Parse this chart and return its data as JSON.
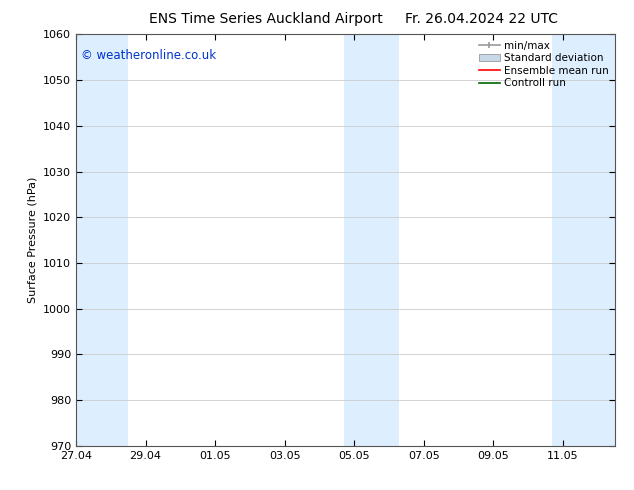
{
  "title_left": "ENS Time Series Auckland Airport",
  "title_right": "Fr. 26.04.2024 22 UTC",
  "ylabel": "Surface Pressure (hPa)",
  "ylim": [
    970,
    1060
  ],
  "yticks": [
    970,
    980,
    990,
    1000,
    1010,
    1020,
    1030,
    1040,
    1050,
    1060
  ],
  "xtick_labels": [
    "27.04",
    "29.04",
    "01.05",
    "03.05",
    "05.05",
    "07.05",
    "09.05",
    "11.05"
  ],
  "xtick_positions": [
    0,
    2,
    4,
    6,
    8,
    10,
    12,
    14
  ],
  "xlim": [
    0,
    15.5
  ],
  "shaded_bands": [
    {
      "x_start": -0.1,
      "x_end": 1.5,
      "color": "#ddeeff"
    },
    {
      "x_start": 7.7,
      "x_end": 9.3,
      "color": "#ddeeff"
    },
    {
      "x_start": 13.7,
      "x_end": 15.6,
      "color": "#ddeeff"
    }
  ],
  "watermark_text": "© weatheronline.co.uk",
  "watermark_color": "#0033cc",
  "watermark_fontsize": 8.5,
  "legend_labels": [
    "min/max",
    "Standard deviation",
    "Ensemble mean run",
    "Controll run"
  ],
  "legend_colors_line": [
    "#aaaaaa",
    "#bbccdd",
    "#ff0000",
    "#006600"
  ],
  "bg_color": "#ffffff",
  "plot_bg_color": "#ffffff",
  "title_fontsize": 10,
  "axis_label_fontsize": 8,
  "tick_fontsize": 8,
  "legend_fontsize": 7.5,
  "grid_color": "#cccccc",
  "spine_color": "#555555"
}
